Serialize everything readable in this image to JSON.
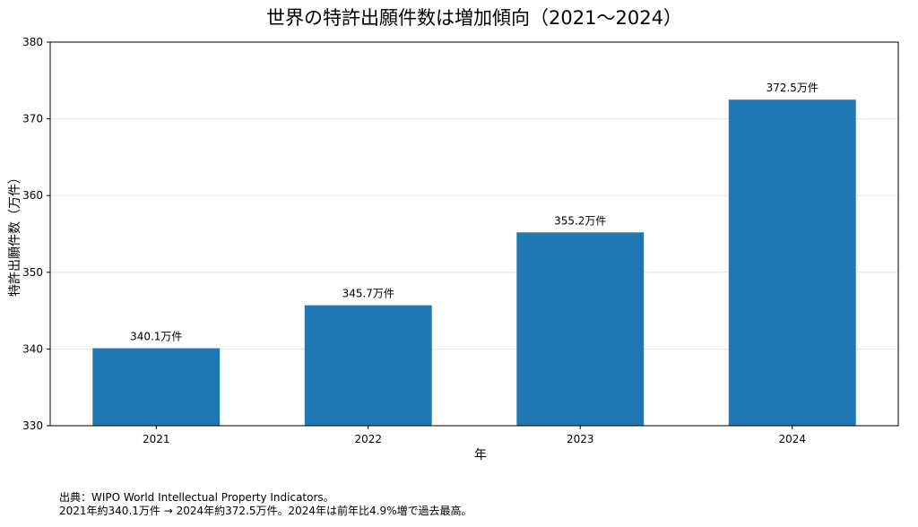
{
  "chart_data": {
    "type": "bar",
    "title": "世界の特許出願件数は増加傾向（2021〜2024）",
    "xlabel": "年",
    "ylabel": "特許出願件数（万件）",
    "categories": [
      "2021",
      "2022",
      "2023",
      "2024"
    ],
    "values": [
      340.1,
      345.7,
      355.2,
      372.5
    ],
    "data_labels": [
      "340.1万件",
      "345.7万件",
      "355.2万件",
      "372.5万件"
    ],
    "ylim": [
      330,
      380
    ],
    "yticks": [
      330,
      340,
      350,
      360,
      370,
      380
    ],
    "grid": "horizontal",
    "bar_color": "#1f77b4"
  },
  "footer": {
    "line1": "出典：WIPO World Intellectual Property Indicators。",
    "line2": "2021年約340.1万件 → 2024年約372.5万件。2024年は前年比4.9%増で過去最高。"
  }
}
